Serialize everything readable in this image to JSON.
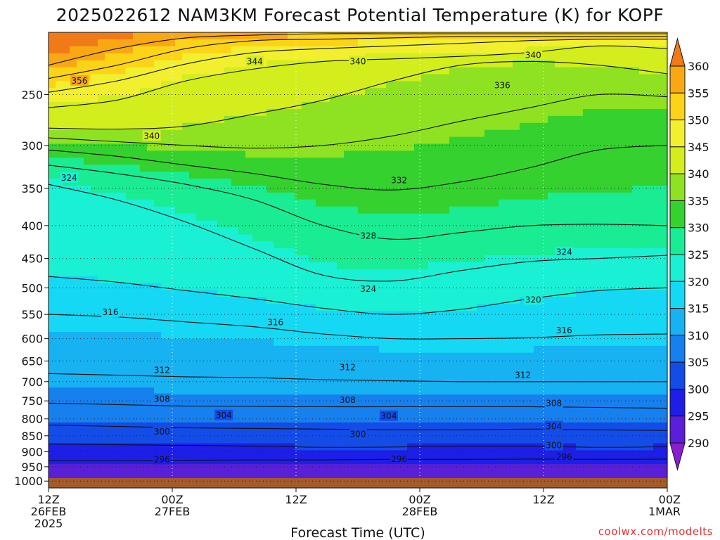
{
  "title": "2025022612 NAM3KM Forecast Potential Temperature (K) for KOPF",
  "credit": "coolwx.com/modelts",
  "chart_data": {
    "type": "contour",
    "title": "2025022612 NAM3KM Forecast Potential Temperature (K) for KOPF",
    "xlabel": "Forecast Time (UTC)",
    "ylabel": "",
    "x_hours_range": [
      0,
      60
    ],
    "x_ticks": [
      {
        "hour": 0,
        "lines": [
          "12Z",
          "26FEB",
          "2025"
        ]
      },
      {
        "hour": 12,
        "lines": [
          "00Z",
          "27FEB"
        ]
      },
      {
        "hour": 24,
        "lines": [
          "12Z"
        ]
      },
      {
        "hour": 36,
        "lines": [
          "00Z",
          "28FEB"
        ]
      },
      {
        "hour": 48,
        "lines": [
          "12Z"
        ]
      },
      {
        "hour": 60,
        "lines": [
          "00Z",
          "1MAR"
        ]
      }
    ],
    "y_pressure_range": [
      1025,
      200
    ],
    "y_ticks": [
      250,
      300,
      350,
      400,
      450,
      500,
      550,
      600,
      650,
      700,
      750,
      800,
      850,
      900,
      950,
      1000
    ],
    "colorbar": {
      "labels": [
        360,
        355,
        350,
        345,
        340,
        335,
        330,
        325,
        320,
        315,
        310,
        305,
        300,
        295,
        290
      ],
      "bounds": [
        360,
        355,
        350,
        345,
        340,
        335,
        330,
        325,
        320,
        315,
        310,
        305,
        300,
        295,
        290
      ],
      "colors": [
        "#f07a18",
        "#f9a814",
        "#fcd316",
        "#f2f02e",
        "#d3ee1c",
        "#8fe221",
        "#35d12f",
        "#19ec92",
        "#19f0d4",
        "#14d8f4",
        "#16b2f2",
        "#1680ee",
        "#144ce8",
        "#1d1fe6",
        "#5a1fd8",
        "#8a1dd0"
      ]
    },
    "isentropes": [
      {
        "theta": 296,
        "p": [
          930,
          929,
          928,
          927,
          927,
          925,
          925,
          924,
          925,
          924
        ]
      },
      {
        "theta": 300,
        "p": [
          875,
          878,
          880,
          882,
          886,
          885,
          882,
          882,
          886,
          884
        ]
      },
      {
        "theta": 304,
        "p": [
          818,
          822,
          826,
          828,
          830,
          832,
          832,
          830,
          832,
          834
        ]
      },
      {
        "theta": 308,
        "p": [
          756,
          760,
          764,
          765,
          766,
          766,
          766,
          766,
          768,
          770
        ]
      },
      {
        "theta": 312,
        "p": [
          680,
          684,
          688,
          690,
          695,
          698,
          700,
          700,
          700,
          700
        ]
      },
      {
        "theta": 316,
        "p": [
          550,
          555,
          565,
          575,
          590,
          600,
          600,
          598,
          592,
          590
        ]
      },
      {
        "theta": 320,
        "p": [
          480,
          490,
          505,
          520,
          538,
          550,
          540,
          520,
          505,
          500
        ]
      },
      {
        "theta": 324,
        "p": [
          345,
          365,
          395,
          435,
          478,
          488,
          470,
          455,
          450,
          445
        ]
      },
      {
        "theta": 328,
        "p": [
          322,
          332,
          345,
          365,
          400,
          420,
          410,
          400,
          398,
          400
        ]
      },
      {
        "theta": 332,
        "p": [
          305,
          312,
          322,
          332,
          345,
          352,
          342,
          325,
          305,
          300
        ]
      },
      {
        "theta": 336,
        "p": [
          292,
          296,
          300,
          303,
          300,
          290,
          275,
          262,
          250,
          252
        ]
      },
      {
        "theta": 340,
        "p": [
          282,
          283,
          280,
          268,
          255,
          238,
          225,
          222,
          225,
          232
        ]
      },
      {
        "theta": 344,
        "p": [
          262,
          255,
          238,
          228,
          222,
          220,
          218,
          215,
          210,
          212
        ]
      },
      {
        "theta": 348,
        "p": [
          248,
          238,
          224,
          215,
          212,
          210,
          208,
          206,
          205,
          205
        ]
      },
      {
        "theta": 352,
        "p": [
          236,
          225,
          212,
          206,
          205,
          204,
          203,
          203,
          203,
          203
        ]
      },
      {
        "theta": 356,
        "p": [
          225,
          212,
          204,
          202,
          201,
          201,
          201,
          201,
          201,
          201
        ]
      }
    ],
    "contour_labels": [
      {
        "text": "356",
        "hour": 3,
        "p": 238
      },
      {
        "text": "344",
        "hour": 20,
        "p": 222
      },
      {
        "text": "340",
        "hour": 30,
        "p": 222
      },
      {
        "text": "340",
        "hour": 47,
        "p": 217
      },
      {
        "text": "336",
        "hour": 44,
        "p": 242
      },
      {
        "text": "340",
        "hour": 10,
        "p": 290
      },
      {
        "text": "324",
        "hour": 2,
        "p": 337
      },
      {
        "text": "332",
        "hour": 34,
        "p": 340
      },
      {
        "text": "328",
        "hour": 31,
        "p": 415
      },
      {
        "text": "324",
        "hour": 50,
        "p": 440
      },
      {
        "text": "324",
        "hour": 31,
        "p": 502
      },
      {
        "text": "320",
        "hour": 47,
        "p": 522
      },
      {
        "text": "316",
        "hour": 6,
        "p": 546
      },
      {
        "text": "316",
        "hour": 22,
        "p": 566
      },
      {
        "text": "316",
        "hour": 50,
        "p": 583
      },
      {
        "text": "312",
        "hour": 11,
        "p": 672
      },
      {
        "text": "312",
        "hour": 29,
        "p": 665
      },
      {
        "text": "312",
        "hour": 46,
        "p": 684
      },
      {
        "text": "308",
        "hour": 11,
        "p": 745
      },
      {
        "text": "308",
        "hour": 29,
        "p": 748
      },
      {
        "text": "308",
        "hour": 49,
        "p": 756
      },
      {
        "text": "304",
        "hour": 17,
        "p": 790
      },
      {
        "text": "304",
        "hour": 33,
        "p": 792
      },
      {
        "text": "304",
        "hour": 49,
        "p": 822
      },
      {
        "text": "300",
        "hour": 11,
        "p": 838
      },
      {
        "text": "300",
        "hour": 30,
        "p": 845
      },
      {
        "text": "300",
        "hour": 49,
        "p": 880
      },
      {
        "text": "296",
        "hour": 11,
        "p": 925
      },
      {
        "text": "296",
        "hour": 34,
        "p": 924
      },
      {
        "text": "296",
        "hour": 50,
        "p": 917
      }
    ],
    "grid": true
  }
}
